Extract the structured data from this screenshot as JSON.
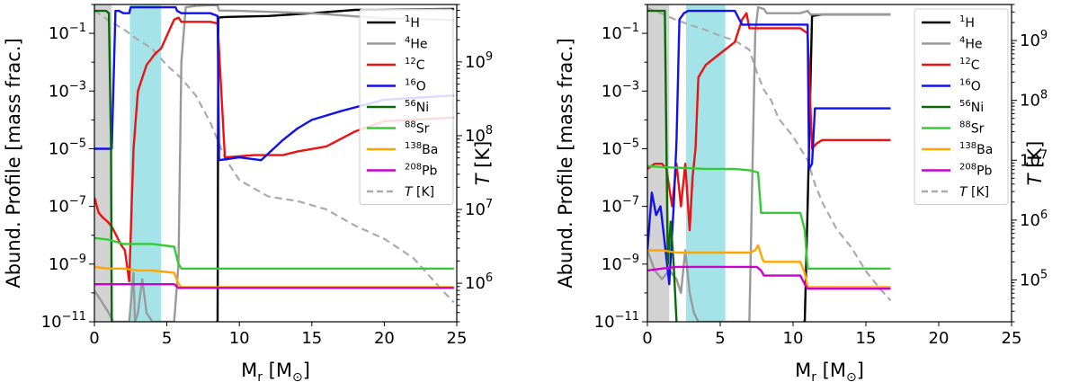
{
  "panels": [
    {
      "id": "left",
      "shaded_gray": [
        0,
        1.2
      ],
      "shaded_cyan": [
        2.45,
        4.6
      ],
      "chart_data": {
        "type": "line",
        "xlabel": "M_r [M_⊙]",
        "ylabel": "Abund. Profile [mass frac.]",
        "ylabel_right": "T [K]",
        "xlim": [
          0,
          25
        ],
        "ylim": [
          1e-11,
          1
        ],
        "ylim_right": [
          300000.0,
          6000000000.0
        ],
        "xticks": [
          0,
          5,
          10,
          15,
          20,
          25
        ],
        "yticks_exp": [
          -11,
          -9,
          -7,
          -5,
          -3,
          -1
        ],
        "yticks_right_exp": [
          6,
          7,
          8,
          9
        ],
        "series": [
          {
            "name": "1H",
            "label": "H",
            "mass": "1",
            "color": "#000000",
            "x": [
              8.4,
              8.5,
              8.55,
              9.0,
              12.0,
              15.0,
              18.0,
              21.0,
              24.8
            ],
            "y": [
              1e-11,
              1e-11,
              0.35,
              0.37,
              0.4,
              0.5,
              0.65,
              0.68,
              0.7
            ]
          },
          {
            "name": "4He",
            "label": "He",
            "mass": "4",
            "color": "#999999",
            "x": [
              0.0,
              0.5,
              1.0,
              1.3,
              1.6,
              2.0,
              2.4,
              2.7,
              2.8,
              3.0,
              3.3,
              3.6,
              4.0,
              5.5,
              5.8,
              6.0,
              6.3,
              7.0,
              8.0,
              8.5,
              8.6,
              10.0,
              15.0,
              20.0,
              24.8
            ],
            "y": [
              1.2e-10,
              5e-11,
              2e-11,
              1e-11,
              1e-11,
              1e-11,
              1e-11,
              5e-10,
              1e-11,
              2e-11,
              3e-10,
              2e-11,
              1e-11,
              1e-11,
              1e-09,
              0.01,
              0.8,
              0.9,
              0.95,
              0.93,
              0.62,
              0.6,
              0.5,
              0.33,
              0.29
            ]
          },
          {
            "name": "12C",
            "label": "C",
            "mass": "12",
            "color": "#ee1111",
            "x": [
              0.0,
              0.3,
              0.6,
              0.9,
              1.2,
              1.5,
              1.8,
              2.1,
              2.4,
              2.7,
              3.0,
              3.6,
              4.2,
              4.6,
              5.5,
              5.8,
              6.0,
              8.0,
              8.5,
              9.0,
              11.0,
              13.0,
              14.0,
              16.0,
              18.0,
              20.0,
              24.8
            ],
            "y": [
              2e-07,
              6e-08,
              4e-08,
              3e-08,
              2e-08,
              1e-08,
              5e-09,
              3e-09,
              2.5e-10,
              1e-05,
              0.001,
              0.008,
              0.02,
              0.03,
              0.3,
              0.35,
              0.25,
              0.25,
              0.22,
              5e-06,
              6e-06,
              6e-06,
              8e-06,
              1.2e-05,
              4e-05,
              9e-05,
              0.00012
            ]
          },
          {
            "name": "16O",
            "label": "O",
            "mass": "16",
            "color": "#1111ee",
            "x": [
              0.0,
              1.2,
              1.45,
              1.7,
              2.0,
              2.4,
              2.5,
              5.6,
              5.7,
              6.0,
              8.0,
              8.5,
              8.6,
              10.0,
              11.5,
              13.0,
              14.0,
              15.0,
              17.0,
              20.0,
              24.8
            ],
            "y": [
              1e-05,
              1e-05,
              0.6,
              0.6,
              0.5,
              0.5,
              0.8,
              0.8,
              0.6,
              0.5,
              0.5,
              0.4,
              4e-06,
              5e-06,
              4e-06,
              2e-05,
              5e-05,
              0.0001,
              0.0002,
              0.0005,
              0.0007
            ]
          },
          {
            "name": "56Ni",
            "label": "Ni",
            "mass": "56",
            "color": "#0a6a0a",
            "x": [
              0.0,
              0.8,
              1.0,
              1.15,
              1.2
            ],
            "y": [
              0.6,
              0.6,
              0.5,
              1e-05,
              1e-11
            ]
          },
          {
            "name": "88Sr",
            "label": "Sr",
            "mass": "88",
            "color": "#33cc33",
            "x": [
              0.0,
              1.0,
              2.0,
              3.0,
              4.0,
              5.5,
              5.8,
              6.0,
              10.0,
              20.0,
              24.8
            ],
            "y": [
              8e-09,
              7e-09,
              5e-09,
              5e-09,
              5e-09,
              4e-09,
              1e-09,
              7e-10,
              7e-10,
              7e-10,
              7e-10
            ]
          },
          {
            "name": "138Ba",
            "label": "Ba",
            "mass": "138",
            "color": "#ffa500",
            "x": [
              0.0,
              1.0,
              2.0,
              3.0,
              4.0,
              5.5,
              5.8,
              6.0,
              10.0,
              20.0,
              24.8
            ],
            "y": [
              8e-10,
              7e-10,
              7e-10,
              6e-10,
              6e-10,
              5e-10,
              2e-10,
              1.6e-10,
              1.6e-10,
              1.6e-10,
              1.6e-10
            ]
          },
          {
            "name": "208Pb",
            "label": "Pb",
            "mass": "208",
            "color": "#cc00cc",
            "x": [
              0.0,
              1.0,
              2.0,
              3.0,
              4.0,
              5.5,
              5.8,
              6.0,
              10.0,
              20.0,
              24.8
            ],
            "y": [
              2e-10,
              2e-10,
              2e-10,
              2e-10,
              2e-10,
              2e-10,
              1.5e-10,
              1.5e-10,
              1.5e-10,
              1.5e-10,
              1.5e-10
            ]
          }
        ],
        "temperature": {
          "name": "T [K]",
          "label": "T [K]",
          "color": "#aaaaaa",
          "x": [
            0.0,
            1.0,
            2.0,
            3.0,
            4.0,
            5.0,
            6.0,
            7.0,
            8.0,
            9.0,
            10.0,
            12.0,
            14.0,
            16.0,
            18.0,
            20.0,
            22.0,
            24.0,
            24.8
          ],
          "y": [
            5000000000.0,
            3600000000.0,
            2800000000.0,
            2000000000.0,
            1500000000.0,
            900000000.0,
            600000000.0,
            350000000.0,
            150000000.0,
            50000000.0,
            25000000.0,
            15000000.0,
            13000000.0,
            10000000.0,
            6000000.0,
            4000000.0,
            2200000.0,
            800000.0,
            550000.0
          ]
        }
      }
    },
    {
      "id": "right",
      "shaded_gray": [
        0,
        1.5
      ],
      "shaded_cyan": [
        2.65,
        5.35
      ],
      "chart_data": {
        "type": "line",
        "xlabel": "M_r [M_⊙]",
        "ylabel": "Abund. Profile [mass frac.]",
        "ylabel_right": "T [K]",
        "xlim": [
          0,
          25
        ],
        "ylim": [
          1e-11,
          1
        ],
        "ylim_right": [
          20000.0,
          4000000000.0
        ],
        "xticks": [
          0,
          5,
          10,
          15,
          20,
          25
        ],
        "yticks_exp": [
          -11,
          -9,
          -7,
          -5,
          -3,
          -1
        ],
        "yticks_right_exp": [
          5,
          6,
          7,
          8,
          9
        ],
        "series": [
          {
            "name": "1H",
            "label": "H",
            "mass": "1",
            "color": "#000000",
            "x": [
              10.7,
              10.8,
              11.0,
              11.3,
              12.0,
              14.0,
              16.7
            ],
            "y": [
              1e-11,
              1e-11,
              1e-07,
              0.4,
              0.45,
              0.45,
              0.45
            ]
          },
          {
            "name": "4He",
            "label": "He",
            "mass": "4",
            "color": "#999999",
            "x": [
              0.0,
              0.5,
              1.0,
              1.5,
              2.0,
              2.3,
              2.6,
              2.9,
              3.2,
              3.5,
              4.0,
              5.0,
              7.0,
              7.4,
              7.6,
              8.0,
              8.2,
              10.5,
              11.0,
              11.2,
              12.0,
              16.7
            ],
            "y": [
              3e-09,
              6e-10,
              3e-10,
              6e-10,
              3e-10,
              1e-10,
              3e-09,
              1e-10,
              2e-11,
              1e-11,
              1e-11,
              1e-11,
              1e-11,
              0.1,
              0.8,
              0.7,
              0.5,
              0.5,
              0.6,
              0.45,
              0.45,
              0.45
            ]
          },
          {
            "name": "12C",
            "label": "C",
            "mass": "12",
            "color": "#ee1111",
            "x": [
              0.0,
              0.5,
              1.0,
              1.3,
              1.7,
              2.0,
              2.3,
              2.6,
              2.9,
              3.1,
              3.3,
              3.5,
              4.0,
              5.0,
              6.0,
              6.5,
              6.8,
              7.0,
              7.5,
              8.0,
              10.5,
              11.0,
              11.3,
              11.6,
              12.0,
              16.7
            ],
            "y": [
              2e-06,
              3e-06,
              3e-06,
              2e-06,
              1e-07,
              3e-06,
              1e-07,
              3e-06,
              1.5e-08,
              1e-06,
              1e-05,
              0.003,
              0.008,
              0.02,
              0.05,
              0.3,
              0.5,
              0.15,
              0.15,
              0.15,
              0.15,
              0.1,
              1e-05,
              1.5e-05,
              2e-05,
              2e-05
            ]
          },
          {
            "name": "16O",
            "label": "O",
            "mass": "16",
            "color": "#1111ee",
            "x": [
              0.0,
              0.3,
              0.6,
              0.9,
              1.2,
              1.5,
              1.8,
              2.0,
              2.2,
              2.5,
              2.8,
              3.0,
              3.5,
              4.0,
              5.0,
              6.0,
              6.5,
              7.0,
              8.0,
              10.0,
              11.0,
              11.1,
              11.3,
              11.5,
              12.0,
              16.7
            ],
            "y": [
              3e-09,
              3e-07,
              5e-08,
              1e-07,
              5e-09,
              2e-10,
              1e-07,
              2e-05,
              0.3,
              0.5,
              0.6,
              0.6,
              0.6,
              0.6,
              0.6,
              0.6,
              0.2,
              0.2,
              0.2,
              0.2,
              0.2,
              2e-06,
              3e-06,
              0.00025,
              0.00025,
              0.00025
            ]
          },
          {
            "name": "56Ni",
            "label": "Ni",
            "mass": "56",
            "color": "#0a6a0a",
            "x": [
              0.0,
              1.2,
              1.4,
              1.6,
              1.8,
              2.0
            ],
            "y": [
              0.6,
              0.6,
              1e-09,
              3e-08,
              1e-09,
              1e-11
            ]
          },
          {
            "name": "88Sr",
            "label": "Sr",
            "mass": "88",
            "color": "#33cc33",
            "x": [
              0.0,
              1.0,
              2.0,
              3.0,
              4.0,
              5.0,
              6.0,
              7.0,
              7.6,
              7.8,
              8.0,
              10.5,
              10.8,
              11.0,
              16.7
            ],
            "y": [
              2.5e-06,
              2.3e-06,
              2.2e-06,
              2.1e-06,
              2e-06,
              2e-06,
              2e-06,
              1.8e-06,
              1.5e-06,
              6e-08,
              6e-08,
              6e-08,
              1.5e-08,
              7e-10,
              7e-10
            ]
          },
          {
            "name": "138Ba",
            "label": "Ba",
            "mass": "138",
            "color": "#ffa500",
            "x": [
              0.0,
              1.0,
              2.0,
              4.0,
              6.0,
              7.0,
              7.4,
              7.6,
              7.9,
              8.0,
              10.5,
              10.8,
              11.0,
              16.7
            ],
            "y": [
              3e-09,
              3e-09,
              2.5e-09,
              2.5e-09,
              2.5e-09,
              2.5e-09,
              3e-09,
              4.5e-09,
              1.5e-09,
              1.2e-09,
              1.2e-09,
              5e-10,
              1.6e-10,
              1.6e-10
            ]
          },
          {
            "name": "208Pb",
            "label": "Pb",
            "mass": "208",
            "color": "#cc00cc",
            "x": [
              0.0,
              1.0,
              2.0,
              4.0,
              6.0,
              7.0,
              7.5,
              7.8,
              8.0,
              10.5,
              10.8,
              11.0,
              16.7
            ],
            "y": [
              6e-10,
              7e-10,
              8e-10,
              8e-10,
              8e-10,
              8e-10,
              8e-10,
              6e-10,
              4e-10,
              4e-10,
              2e-10,
              1.4e-10,
              1.4e-10
            ]
          }
        ],
        "temperature": {
          "name": "T [K]",
          "label": "T [K]",
          "color": "#aaaaaa",
          "x": [
            0.0,
            1.0,
            2.0,
            3.0,
            4.0,
            5.0,
            6.0,
            7.0,
            7.5,
            8.0,
            8.5,
            9.0,
            10.0,
            11.0,
            11.5,
            12.0,
            13.0,
            14.0,
            15.0,
            16.0,
            16.7
          ],
          "y": [
            3500000000.0,
            2800000000.0,
            2200000000.0,
            1800000000.0,
            1500000000.0,
            1200000000.0,
            1000000000.0,
            700000000.0,
            300000000.0,
            150000000.0,
            100000000.0,
            50000000.0,
            25000000.0,
            10000000.0,
            4000000.0,
            2000000.0,
            700000.0,
            350000.0,
            140000.0,
            70000.0,
            45000.0
          ]
        }
      }
    }
  ]
}
